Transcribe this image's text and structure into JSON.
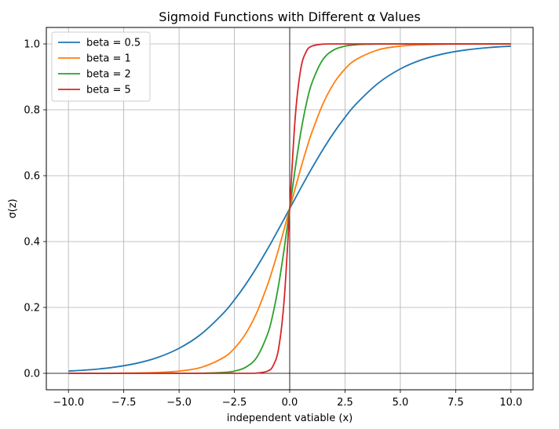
{
  "chart_data": {
    "type": "line",
    "title": "Sigmoid Functions with Different α Values",
    "xlabel": "independent vatiable (x)",
    "ylabel": "σ(z)",
    "xlim": [
      -11,
      11
    ],
    "ylim": [
      -0.05,
      1.05
    ],
    "xticks": [
      -10.0,
      -7.5,
      -5.0,
      -2.5,
      0.0,
      2.5,
      5.0,
      7.5,
      10.0
    ],
    "xtick_labels": [
      "−10.0",
      "−7.5",
      "−5.0",
      "−2.5",
      "0.0",
      "2.5",
      "5.0",
      "7.5",
      "10.0"
    ],
    "yticks": [
      0.0,
      0.2,
      0.4,
      0.6,
      0.8,
      1.0
    ],
    "ytick_labels": [
      "0.0",
      "0.2",
      "0.4",
      "0.6",
      "0.8",
      "1.0"
    ],
    "grid": true,
    "legend_position": "top-left",
    "x": [
      -10,
      -9,
      -8,
      -7,
      -6,
      -5,
      -4,
      -3,
      -2.5,
      -2,
      -1.5,
      -1,
      -0.75,
      -0.5,
      -0.25,
      0,
      0.25,
      0.5,
      0.75,
      1,
      1.5,
      2,
      2.5,
      3,
      4,
      5,
      6,
      7,
      8,
      9,
      10
    ],
    "series": [
      {
        "name": "beta = 0.5",
        "color": "#1f77b4",
        "values": [
          0.0067,
          0.011,
          0.018,
          0.0293,
          0.0474,
          0.0759,
          0.1192,
          0.1824,
          0.2227,
          0.2689,
          0.3208,
          0.3775,
          0.4073,
          0.4378,
          0.4688,
          0.5,
          0.5312,
          0.5622,
          0.5927,
          0.6225,
          0.6792,
          0.7311,
          0.7773,
          0.8176,
          0.8808,
          0.9241,
          0.9526,
          0.9707,
          0.982,
          0.989,
          0.9933
        ]
      },
      {
        "name": "beta = 1",
        "color": "#ff7f0e",
        "values": [
          0.0,
          0.0001,
          0.0003,
          0.0009,
          0.0025,
          0.0067,
          0.018,
          0.0474,
          0.0759,
          0.1192,
          0.1824,
          0.2689,
          0.3208,
          0.3775,
          0.4378,
          0.5,
          0.5622,
          0.6225,
          0.6792,
          0.7311,
          0.8176,
          0.8808,
          0.9241,
          0.9526,
          0.982,
          0.9933,
          0.9975,
          0.9991,
          0.9997,
          0.9999,
          1.0
        ]
      },
      {
        "name": "beta = 2",
        "color": "#2ca02c",
        "values": [
          0.0,
          0.0,
          0.0,
          0.0,
          0.0,
          0.0,
          0.0003,
          0.0025,
          0.0067,
          0.018,
          0.0474,
          0.1192,
          0.1824,
          0.2689,
          0.3775,
          0.5,
          0.6225,
          0.7311,
          0.8176,
          0.8808,
          0.9526,
          0.982,
          0.9933,
          0.9975,
          0.9997,
          1.0,
          1.0,
          1.0,
          1.0,
          1.0,
          1.0
        ]
      },
      {
        "name": "beta = 5",
        "color": "#d62728",
        "values": [
          0.0,
          0.0,
          0.0,
          0.0,
          0.0,
          0.0,
          0.0,
          0.0,
          0.0,
          0.0,
          0.0006,
          0.0067,
          0.023,
          0.0759,
          0.2227,
          0.5,
          0.7773,
          0.9241,
          0.977,
          0.9933,
          0.9994,
          1.0,
          1.0,
          1.0,
          1.0,
          1.0,
          1.0,
          1.0,
          1.0,
          1.0,
          1.0
        ]
      }
    ]
  }
}
